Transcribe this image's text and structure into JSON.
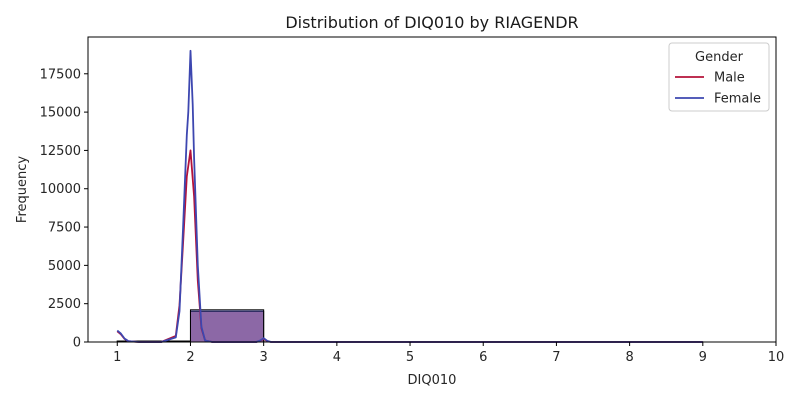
{
  "chart_data": {
    "type": "histogram",
    "title": "Distribution of DIQ010 by RIAGENDR",
    "xlabel": "DIQ010",
    "ylabel": "Frequency",
    "xlim": [
      0.6,
      10
    ],
    "ylim": [
      0,
      19900
    ],
    "x_ticks": [
      1,
      2,
      3,
      4,
      5,
      6,
      7,
      8,
      9,
      10
    ],
    "y_ticks": [
      0,
      2500,
      5000,
      7500,
      10000,
      12500,
      15000,
      17500
    ],
    "grid": false,
    "legend": {
      "title": "Gender",
      "placement": "top-right",
      "entries": [
        {
          "label": "Male",
          "color": "#b5123a"
        },
        {
          "label": "Female",
          "color": "#3d47b0"
        }
      ]
    },
    "histogram_bins": [
      {
        "x_start": 1,
        "x_end": 2,
        "male": 60,
        "female": 60
      },
      {
        "x_start": 2,
        "x_end": 3,
        "male": 2000,
        "female": 2100
      },
      {
        "x_start": 3,
        "x_end": 9,
        "male": 5,
        "female": 5
      }
    ],
    "series": [
      {
        "name": "Male",
        "color": "#b5123a",
        "x": [
          1.0,
          1.05,
          1.1,
          1.15,
          1.3,
          1.6,
          1.8,
          1.85,
          1.9,
          1.95,
          2.0,
          2.05,
          2.1,
          2.15,
          2.2,
          2.3,
          2.6,
          2.9,
          2.95,
          3.0,
          3.05,
          3.1,
          3.2,
          4,
          5,
          6,
          7,
          8,
          9
        ],
        "y": [
          700,
          500,
          200,
          50,
          0,
          0,
          400,
          2400,
          6500,
          10800,
          12500,
          9500,
          4000,
          900,
          100,
          0,
          0,
          0,
          80,
          200,
          60,
          0,
          0,
          0,
          0,
          0,
          0,
          0,
          0
        ]
      },
      {
        "name": "Female",
        "color": "#3d47b0",
        "x": [
          1.0,
          1.05,
          1.1,
          1.15,
          1.3,
          1.6,
          1.8,
          1.85,
          1.9,
          1.95,
          1.97,
          2.0,
          2.03,
          2.05,
          2.1,
          2.15,
          2.2,
          2.3,
          2.6,
          2.9,
          2.95,
          3.0,
          3.05,
          3.1,
          3.2,
          4,
          5,
          6,
          7,
          8,
          9
        ],
        "y": [
          750,
          550,
          220,
          60,
          0,
          0,
          300,
          2000,
          7500,
          13500,
          15000,
          19000,
          15500,
          12000,
          5000,
          1000,
          100,
          0,
          0,
          0,
          90,
          250,
          80,
          0,
          0,
          0,
          0,
          0,
          0,
          0,
          0
        ]
      }
    ]
  }
}
